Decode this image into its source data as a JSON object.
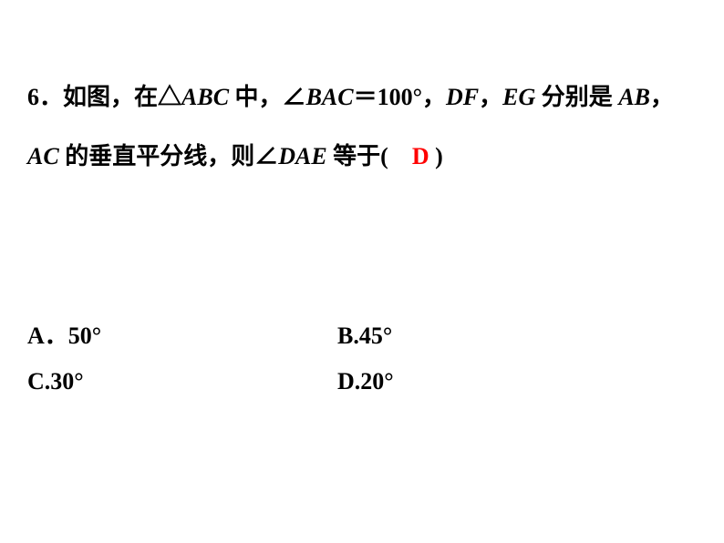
{
  "question": {
    "number": "6",
    "line1_part1": "．如图，在△",
    "line1_abc": "ABC",
    "line1_part2": " 中，∠",
    "line1_bac": "BAC",
    "line1_part3": "＝",
    "line1_angle": "100°",
    "line1_part4": "，",
    "line1_df": "DF",
    "line1_part5": "，",
    "line1_eg": "EG",
    "line1_part6": " 分别是 ",
    "line1_ab": "AB",
    "line1_part7": "，",
    "line2_ac": "AC",
    "line2_part1": " 的垂直平分线，则∠",
    "line2_dae": "DAE",
    "line2_part2": " 等于(　",
    "line2_answer": "D",
    "line2_part3": " )"
  },
  "options": {
    "a_label": "A",
    "a_sep": "．",
    "a_value": "50°",
    "b_label": "B.",
    "b_value": "45°",
    "c_label": "C.",
    "c_value": "30°",
    "d_label": "D.",
    "d_value": "20°"
  },
  "styling": {
    "background_color": "#ffffff",
    "text_color": "#000000",
    "highlight_color": "#ff0000",
    "font_size": 26,
    "font_weight": "bold"
  }
}
